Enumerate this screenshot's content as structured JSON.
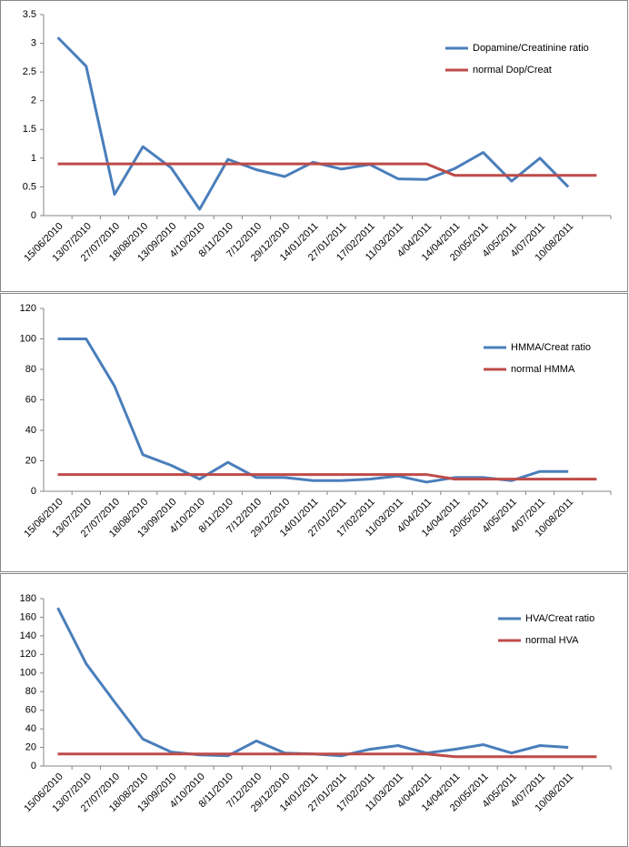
{
  "chart_data": [
    {
      "type": "line",
      "categories": [
        "15/06/2010",
        "13/07/2010",
        "27/07/2010",
        "18/08/2010",
        "13/09/2010",
        "4/10/2010",
        "8/11/2010",
        "7/12/2010",
        "29/12/2010",
        "14/01/2011",
        "27/01/2011",
        "17/02/2011",
        "11/03/2011",
        "4/04/2011",
        "14/04/2011",
        "20/05/2011",
        "4/05/2011",
        "4/07/2011",
        "10/08/2011",
        null
      ],
      "series": [
        {
          "name": "Dopamine/Creatinine ratio",
          "color": "#4a7ebb",
          "values": [
            3.1,
            2.6,
            0.37,
            1.2,
            0.83,
            0.11,
            0.98,
            0.8,
            0.68,
            0.93,
            0.81,
            0.89,
            0.64,
            0.63,
            0.82,
            1.1,
            0.6,
            1.0,
            0.5,
            null
          ]
        },
        {
          "name": "normal Dop/Creat",
          "color": "#be4b48",
          "values": [
            0.9,
            0.9,
            0.9,
            0.9,
            0.9,
            0.9,
            0.9,
            0.9,
            0.9,
            0.9,
            0.9,
            0.9,
            0.9,
            0.9,
            0.7,
            0.7,
            0.7,
            0.7,
            0.7,
            0.7
          ]
        }
      ],
      "ylim": [
        0,
        3.5
      ],
      "yticks": [
        0,
        0.5,
        1,
        1.5,
        2,
        2.5,
        3,
        3.5
      ],
      "grid": false,
      "legend": "right"
    },
    {
      "type": "line",
      "categories": [
        "15/06/2010",
        "13/07/2010",
        "27/07/2010",
        "18/08/2010",
        "13/09/2010",
        "4/10/2010",
        "8/11/2010",
        "7/12/2010",
        "29/12/2010",
        "14/01/2011",
        "27/01/2011",
        "17/02/2011",
        "11/03/2011",
        "4/04/2011",
        "14/04/2011",
        "20/05/2011",
        "4/05/2011",
        "4/07/2011",
        "10/08/2011",
        null
      ],
      "series": [
        {
          "name": "HMMA/Creat ratio",
          "color": "#4a7ebb",
          "values": [
            100,
            100,
            69,
            24,
            17,
            8,
            19,
            9,
            9,
            7,
            7,
            8,
            10,
            6,
            9,
            9,
            7,
            13,
            13,
            null
          ]
        },
        {
          "name": "normal HMMA",
          "color": "#be4b48",
          "values": [
            11,
            11,
            11,
            11,
            11,
            11,
            11,
            11,
            11,
            11,
            11,
            11,
            11,
            11,
            8,
            8,
            8,
            8,
            8,
            8
          ]
        }
      ],
      "ylim": [
        0,
        120
      ],
      "yticks": [
        0,
        20,
        40,
        60,
        80,
        100,
        120
      ],
      "grid": false,
      "legend": "right"
    },
    {
      "type": "line",
      "categories": [
        "15/06/2010",
        "13/07/2010",
        "27/07/2010",
        "18/08/2010",
        "13/09/2010",
        "4/10/2010",
        "8/11/2010",
        "7/12/2010",
        "29/12/2010",
        "14/01/2011",
        "27/01/2011",
        "17/02/2011",
        "11/03/2011",
        "4/04/2011",
        "14/04/2011",
        "20/05/2011",
        "4/05/2011",
        "4/07/2011",
        "10/08/2011",
        null
      ],
      "series": [
        {
          "name": "HVA/Creat ratio",
          "color": "#4a7ebb",
          "values": [
            170,
            110,
            69,
            29,
            15,
            12,
            11,
            27,
            14,
            13,
            11,
            18,
            22,
            14,
            18,
            23,
            14,
            22,
            20,
            null
          ]
        },
        {
          "name": "normal HVA",
          "color": "#be4b48",
          "values": [
            13,
            13,
            13,
            13,
            13,
            13,
            13,
            13,
            13,
            13,
            13,
            13,
            13,
            13,
            10,
            10,
            10,
            10,
            10,
            10
          ]
        }
      ],
      "ylim": [
        0,
        180
      ],
      "yticks": [
        0,
        20,
        40,
        60,
        80,
        100,
        120,
        140,
        160,
        180
      ],
      "grid": false,
      "legend": "right"
    }
  ]
}
